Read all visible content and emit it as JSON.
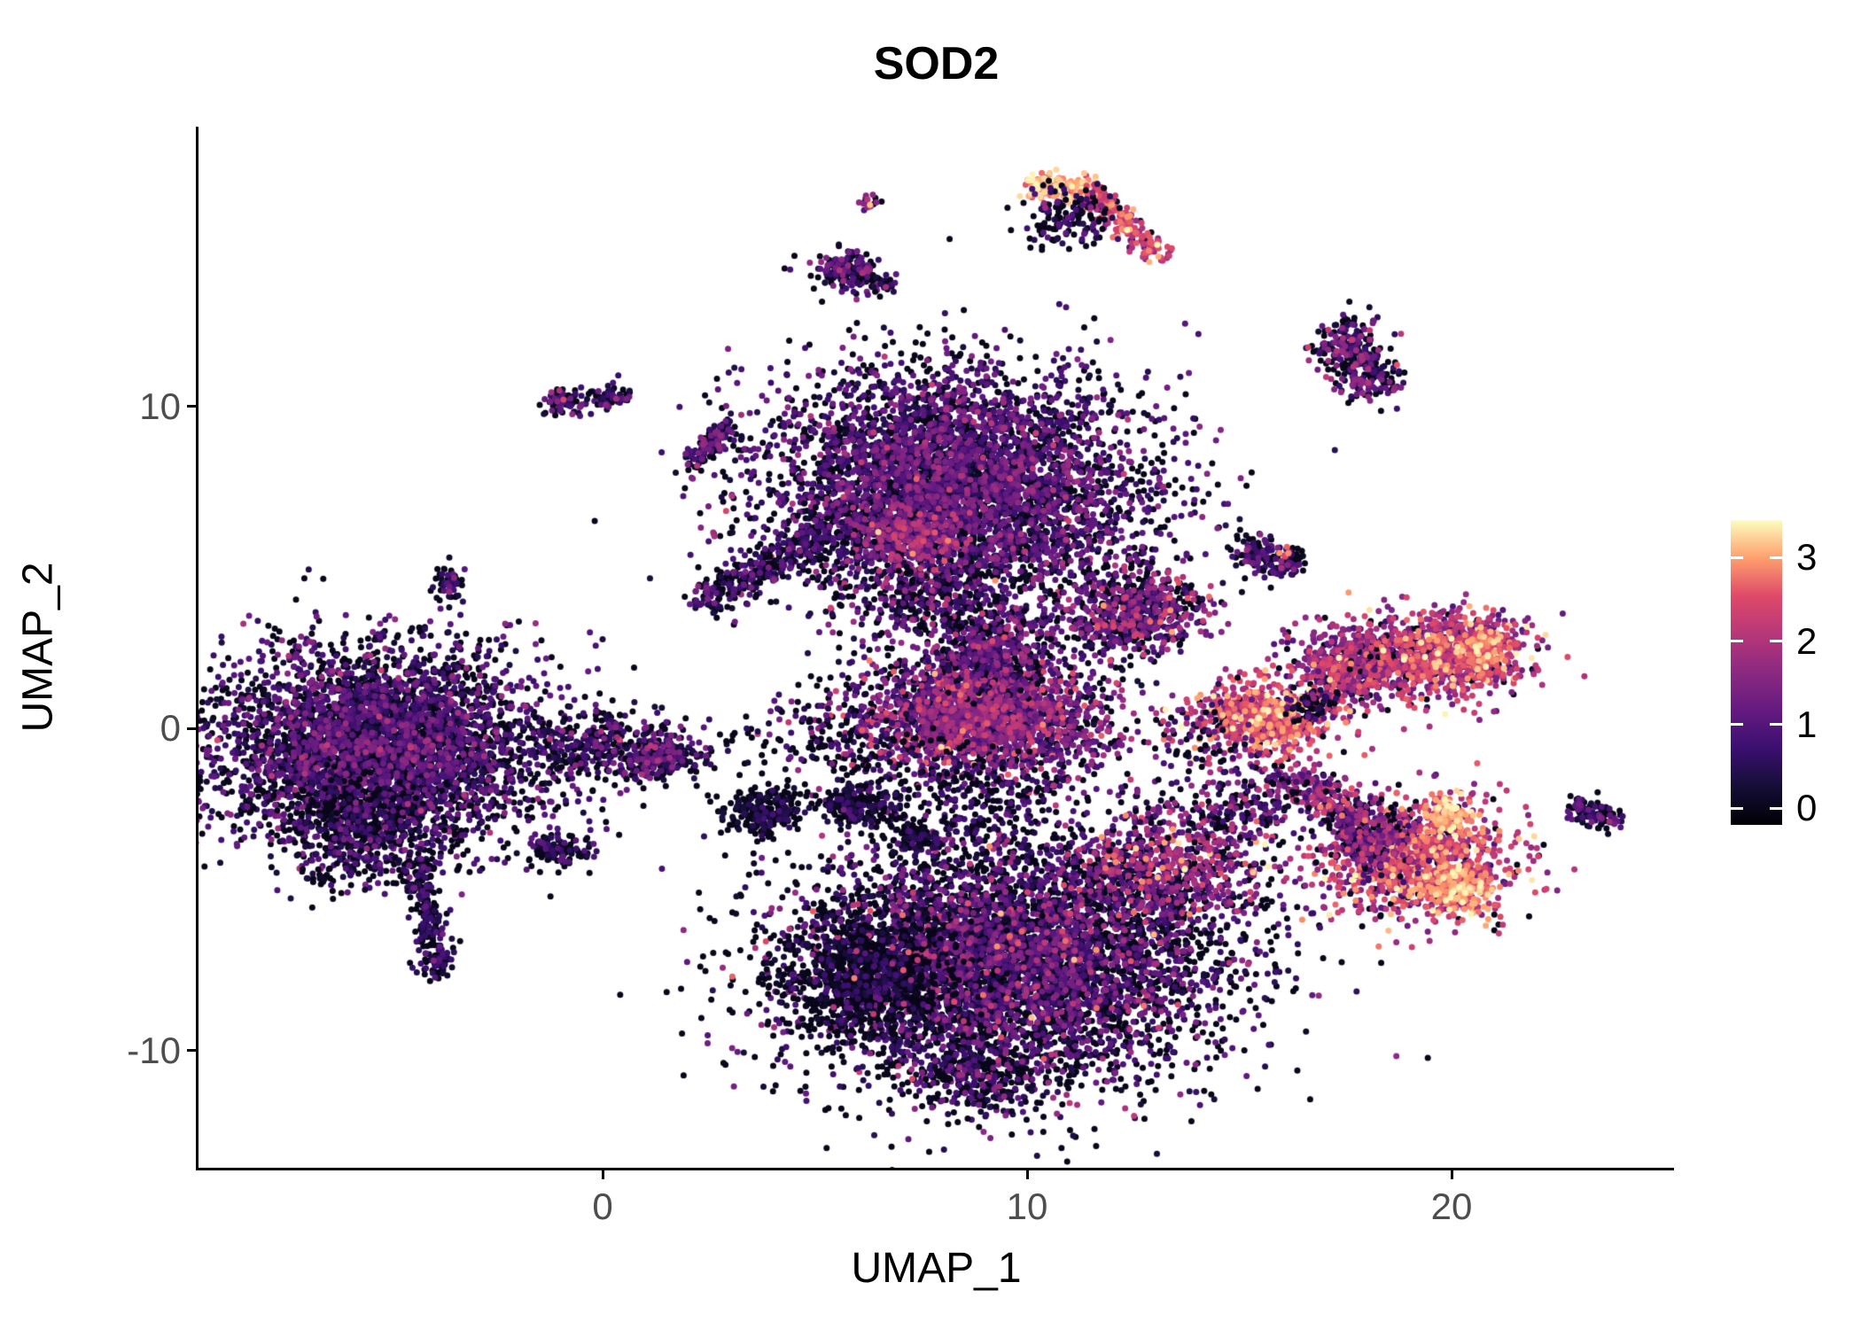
{
  "chart_data": {
    "type": "scatter",
    "subtype": "umap-feature-plot",
    "title": "SOD2",
    "xlabel": "UMAP_1",
    "ylabel": "UMAP_2",
    "xlim": [
      -9.52,
      25.24
    ],
    "ylim": [
      -13.64,
      18.68
    ],
    "xticks": [
      0,
      10,
      20
    ],
    "yticks": [
      -10,
      0,
      10
    ],
    "grid": false,
    "point_radius": 3.5,
    "legend": {
      "position": "right",
      "ticks": [
        0,
        1,
        2,
        3
      ],
      "vmin": -0.2,
      "vmax": 3.45
    },
    "colormap": {
      "name": "magma",
      "stops": [
        [
          0.0,
          "#000004"
        ],
        [
          0.125,
          "#140e36"
        ],
        [
          0.25,
          "#3b0f70"
        ],
        [
          0.375,
          "#641a80"
        ],
        [
          0.5,
          "#8c2981"
        ],
        [
          0.625,
          "#b73779"
        ],
        [
          0.75,
          "#de4968"
        ],
        [
          0.875,
          "#fe9f6d"
        ],
        [
          1.0,
          "#fcfdbf"
        ]
      ]
    },
    "clusters": [
      {
        "name": "left-main",
        "shape": "blob",
        "center": [
          -5.3,
          -0.5
        ],
        "spread": [
          2.0,
          1.55
        ],
        "n": 4200,
        "expr": {
          "zero": 0.38,
          "mean": 0.75,
          "sd": 0.5
        }
      },
      {
        "name": "left-main-lower-lobe",
        "shape": "blob",
        "center": [
          -5.6,
          -3.1
        ],
        "spread": [
          0.9,
          0.8
        ],
        "n": 500,
        "expr": {
          "zero": 0.45,
          "mean": 0.6,
          "sd": 0.45
        }
      },
      {
        "name": "left-tail",
        "shape": "streak",
        "from": [
          -4.4,
          -4.0
        ],
        "to": [
          -3.85,
          -7.7
        ],
        "width": 0.22,
        "n": 240,
        "expr": {
          "zero": 0.45,
          "mean": 0.55,
          "sd": 0.4
        }
      },
      {
        "name": "left-speck",
        "shape": "blob",
        "center": [
          -6.6,
          -4.6
        ],
        "spread": [
          0.18,
          0.12
        ],
        "n": 18,
        "expr": {
          "zero": 0.5,
          "mean": 0.5,
          "sd": 0.4
        }
      },
      {
        "name": "left-bridge",
        "shape": "blob",
        "center": [
          0.3,
          -0.6
        ],
        "spread": [
          1.1,
          0.55
        ],
        "n": 380,
        "expr": {
          "zero": 0.4,
          "mean": 0.7,
          "sd": 0.5
        }
      },
      {
        "name": "left-bridge-blob",
        "shape": "blob",
        "center": [
          1.35,
          -0.9
        ],
        "spread": [
          0.4,
          0.3
        ],
        "n": 200,
        "expr": {
          "zero": 0.35,
          "mean": 0.8,
          "sd": 0.5
        }
      },
      {
        "name": "small-left-low",
        "shape": "blob",
        "center": [
          -1.0,
          -3.8
        ],
        "spread": [
          0.35,
          0.25
        ],
        "n": 110,
        "expr": {
          "zero": 0.5,
          "mean": 0.5,
          "sd": 0.4
        }
      },
      {
        "name": "tiny-left-upper",
        "shape": "blob",
        "center": [
          -3.6,
          4.5
        ],
        "spread": [
          0.18,
          0.3
        ],
        "n": 50,
        "expr": {
          "zero": 0.45,
          "mean": 0.6,
          "sd": 0.4
        }
      },
      {
        "name": "top-main",
        "shape": "blob",
        "center": [
          8.3,
          7.4
        ],
        "spread": [
          2.2,
          1.85
        ],
        "n": 5200,
        "expr": {
          "zero": 0.32,
          "mean": 0.8,
          "sd": 0.55
        }
      },
      {
        "name": "top-main-hotspot",
        "shape": "blob",
        "center": [
          7.3,
          6.0
        ],
        "spread": [
          0.75,
          0.55
        ],
        "n": 320,
        "expr": {
          "zero": 0.08,
          "mean": 1.6,
          "sd": 0.5
        }
      },
      {
        "name": "top-main-lower-spur",
        "shape": "blob",
        "center": [
          7.8,
          3.9
        ],
        "spread": [
          0.85,
          0.6
        ],
        "n": 260,
        "expr": {
          "zero": 0.3,
          "mean": 0.9,
          "sd": 0.6
        }
      },
      {
        "name": "top-diag-streak",
        "shape": "streak",
        "from": [
          2.3,
          3.9
        ],
        "to": [
          5.6,
          6.3
        ],
        "width": 0.3,
        "n": 360,
        "expr": {
          "zero": 0.4,
          "mean": 0.6,
          "sd": 0.45
        }
      },
      {
        "name": "mid-cluster",
        "shape": "blob",
        "center": [
          8.9,
          0.35
        ],
        "spread": [
          1.5,
          1.0
        ],
        "n": 2300,
        "expr": {
          "zero": 0.22,
          "mean": 1.15,
          "sd": 0.6
        }
      },
      {
        "name": "mid-cluster-upper",
        "shape": "blob",
        "center": [
          9.3,
          2.4
        ],
        "spread": [
          0.8,
          0.7
        ],
        "n": 480,
        "expr": {
          "zero": 0.28,
          "mean": 1.0,
          "sd": 0.6
        }
      },
      {
        "name": "mid-cluster-bright",
        "shape": "blob",
        "center": [
          8.7,
          0.2
        ],
        "spread": [
          1.3,
          0.9
        ],
        "n": 70,
        "expr": {
          "zero": 0,
          "mean": 2.3,
          "sd": 0.35
        }
      },
      {
        "name": "mid-right-spur",
        "shape": "blob",
        "center": [
          12.6,
          3.6
        ],
        "spread": [
          0.85,
          0.7
        ],
        "n": 620,
        "expr": {
          "zero": 0.25,
          "mean": 1.1,
          "sd": 0.65
        }
      },
      {
        "name": "bottom-main",
        "shape": "blob",
        "center": [
          9.6,
          -7.2
        ],
        "spread": [
          2.55,
          1.95
        ],
        "n": 5600,
        "expr": {
          "zero": 0.42,
          "mean": 0.75,
          "sd": 0.6
        }
      },
      {
        "name": "bottom-dark-left",
        "shape": "blob",
        "center": [
          6.3,
          -7.7
        ],
        "spread": [
          1.05,
          0.95
        ],
        "n": 900,
        "expr": {
          "zero": 0.58,
          "mean": 0.35,
          "sd": 0.35
        }
      },
      {
        "name": "bottom-lower-ext",
        "shape": "blob",
        "center": [
          8.8,
          -10.7
        ],
        "spread": [
          0.85,
          0.55
        ],
        "n": 300,
        "expr": {
          "zero": 0.45,
          "mean": 0.7,
          "sd": 0.6
        }
      },
      {
        "name": "bottom-bright-specks",
        "shape": "blob",
        "center": [
          9.6,
          -6.8
        ],
        "spread": [
          2.3,
          1.7
        ],
        "n": 90,
        "expr": {
          "zero": 0,
          "mean": 2.2,
          "sd": 0.45
        }
      },
      {
        "name": "bottom-right-ext",
        "shape": "blob",
        "center": [
          13.3,
          -4.3
        ],
        "spread": [
          1.15,
          0.9
        ],
        "n": 680,
        "expr": {
          "zero": 0.22,
          "mean": 1.45,
          "sd": 0.7
        }
      },
      {
        "name": "bottom-mid-scatter",
        "shape": "blob",
        "center": [
          8.6,
          -2.3
        ],
        "spread": [
          1.4,
          0.8
        ],
        "n": 240,
        "expr": {
          "zero": 0.5,
          "mean": 0.6,
          "sd": 0.5
        }
      },
      {
        "name": "black-blob-1",
        "shape": "blob",
        "center": [
          3.8,
          -2.6
        ],
        "spread": [
          0.5,
          0.35
        ],
        "n": 230,
        "expr": {
          "zero": 0.6,
          "mean": 0.35,
          "sd": 0.3
        }
      },
      {
        "name": "black-blob-2",
        "shape": "blob",
        "center": [
          6.0,
          -2.4
        ],
        "spread": [
          0.45,
          0.3
        ],
        "n": 190,
        "expr": {
          "zero": 0.55,
          "mean": 0.4,
          "sd": 0.35
        }
      },
      {
        "name": "black-blob-3",
        "shape": "blob",
        "center": [
          7.4,
          -3.4
        ],
        "spread": [
          0.3,
          0.2
        ],
        "n": 80,
        "expr": {
          "zero": 0.55,
          "mean": 0.4,
          "sd": 0.35
        }
      },
      {
        "name": "left-mid-scatter",
        "shape": "blob",
        "center": [
          5.3,
          -0.3
        ],
        "spread": [
          1.2,
          0.7
        ],
        "n": 160,
        "expr": {
          "zero": 0.5,
          "mean": 0.55,
          "sd": 0.45
        }
      },
      {
        "name": "right-top-lobe-left",
        "shape": "blob",
        "center": [
          17.6,
          1.9
        ],
        "spread": [
          0.7,
          0.6
        ],
        "n": 600,
        "expr": {
          "zero": 0.15,
          "mean": 1.6,
          "sd": 0.6
        }
      },
      {
        "name": "right-top-lobe-right",
        "shape": "blob",
        "center": [
          19.8,
          2.3
        ],
        "spread": [
          1.0,
          0.65
        ],
        "n": 900,
        "expr": {
          "zero": 0.12,
          "mean": 1.95,
          "sd": 0.6
        }
      },
      {
        "name": "right-top-bright-edge",
        "shape": "blob",
        "center": [
          20.7,
          2.4
        ],
        "spread": [
          0.35,
          0.4
        ],
        "n": 200,
        "expr": {
          "zero": 0.05,
          "mean": 2.6,
          "sd": 0.4
        }
      },
      {
        "name": "right-mid-bright",
        "shape": "blob",
        "center": [
          15.6,
          0.3
        ],
        "spread": [
          0.8,
          0.6
        ],
        "n": 650,
        "expr": {
          "zero": 0.08,
          "mean": 2.25,
          "sd": 0.55
        }
      },
      {
        "name": "right-mid-dark-fringe",
        "shape": "blob",
        "center": [
          16.7,
          0.7
        ],
        "spread": [
          0.3,
          0.3
        ],
        "n": 60,
        "expr": {
          "zero": 0.5,
          "mean": 0.6,
          "sd": 0.5
        }
      },
      {
        "name": "right-bottom-main",
        "shape": "blob",
        "center": [
          19.2,
          -4.1
        ],
        "spread": [
          1.1,
          0.9
        ],
        "n": 1100,
        "expr": {
          "zero": 0.1,
          "mean": 2.1,
          "sd": 0.6
        }
      },
      {
        "name": "right-bottom-bright-low",
        "shape": "blob",
        "center": [
          20.1,
          -4.9
        ],
        "spread": [
          0.4,
          0.35
        ],
        "n": 220,
        "expr": {
          "zero": 0.03,
          "mean": 2.9,
          "sd": 0.3
        }
      },
      {
        "name": "right-bottom-bright-top",
        "shape": "blob",
        "center": [
          19.9,
          -2.7
        ],
        "spread": [
          0.3,
          0.25
        ],
        "n": 120,
        "expr": {
          "zero": 0.03,
          "mean": 2.8,
          "sd": 0.35
        }
      },
      {
        "name": "right-bottom-purple-left",
        "shape": "blob",
        "center": [
          18.0,
          -3.5
        ],
        "spread": [
          0.55,
          0.5
        ],
        "n": 260,
        "expr": {
          "zero": 0.2,
          "mean": 1.35,
          "sd": 0.55
        }
      },
      {
        "name": "right-bottom-tail",
        "shape": "streak",
        "from": [
          16.1,
          -1.5
        ],
        "to": [
          18.2,
          -2.9
        ],
        "width": 0.35,
        "n": 260,
        "expr": {
          "zero": 0.2,
          "mean": 1.5,
          "sd": 0.6
        }
      },
      {
        "name": "right-bottom-scatter",
        "shape": "blob",
        "center": [
          15.0,
          -2.3
        ],
        "spread": [
          0.9,
          0.7
        ],
        "n": 210,
        "expr": {
          "zero": 0.35,
          "mean": 1.0,
          "sd": 0.7
        }
      },
      {
        "name": "mid-right-sparse",
        "shape": "blob",
        "center": [
          14.0,
          -0.2
        ],
        "spread": [
          0.7,
          0.8
        ],
        "n": 70,
        "expr": {
          "zero": 0.4,
          "mean": 1.0,
          "sd": 0.8
        }
      },
      {
        "name": "top-arc-bright",
        "shape": "streak",
        "from": [
          10.1,
          16.8
        ],
        "to": [
          11.5,
          16.75
        ],
        "width": 0.22,
        "n": 150,
        "expr": {
          "zero": 0,
          "mean": 3.0,
          "sd": 0.25
        }
      },
      {
        "name": "top-arc-descent",
        "shape": "streak",
        "from": [
          11.5,
          16.7
        ],
        "to": [
          13.15,
          14.6
        ],
        "width": 0.2,
        "n": 200,
        "expr": {
          "zero": 0.05,
          "mean": 2.2,
          "sd": 0.5
        }
      },
      {
        "name": "top-arc-dark",
        "shape": "blob",
        "center": [
          11.0,
          15.9
        ],
        "spread": [
          0.55,
          0.5
        ],
        "n": 140,
        "expr": {
          "zero": 0.45,
          "mean": 0.6,
          "sd": 0.5
        }
      },
      {
        "name": "small-top-mid",
        "shape": "blob",
        "center": [
          5.75,
          14.2
        ],
        "spread": [
          0.4,
          0.3
        ],
        "n": 170,
        "expr": {
          "zero": 0.35,
          "mean": 0.8,
          "sd": 0.55
        }
      },
      {
        "name": "small-top-mid-2",
        "shape": "blob",
        "center": [
          6.55,
          13.8
        ],
        "spread": [
          0.2,
          0.15
        ],
        "n": 25,
        "expr": {
          "zero": 0.4,
          "mean": 0.7,
          "sd": 0.5
        }
      },
      {
        "name": "tiny-top-dot",
        "shape": "blob",
        "center": [
          6.2,
          16.4
        ],
        "spread": [
          0.13,
          0.12
        ],
        "n": 18,
        "expr": {
          "zero": 0.1,
          "mean": 1.8,
          "sd": 0.6
        }
      },
      {
        "name": "tiny-upper-left-1",
        "shape": "blob",
        "center": [
          -0.95,
          10.15
        ],
        "spread": [
          0.3,
          0.2
        ],
        "n": 70,
        "expr": {
          "zero": 0.35,
          "mean": 0.8,
          "sd": 0.6
        }
      },
      {
        "name": "tiny-upper-left-2",
        "shape": "blob",
        "center": [
          0.15,
          10.3
        ],
        "spread": [
          0.25,
          0.18
        ],
        "n": 55,
        "expr": {
          "zero": 0.4,
          "mean": 0.7,
          "sd": 0.5
        }
      },
      {
        "name": "upper-left-streak",
        "shape": "streak",
        "from": [
          2.1,
          8.2
        ],
        "to": [
          3.0,
          9.4
        ],
        "width": 0.18,
        "n": 130,
        "expr": {
          "zero": 0.35,
          "mean": 0.8,
          "sd": 0.5
        }
      },
      {
        "name": "right-upper-small",
        "shape": "streak",
        "from": [
          17.25,
          12.4
        ],
        "to": [
          18.3,
          10.5
        ],
        "width": 0.42,
        "n": 320,
        "expr": {
          "zero": 0.3,
          "mean": 0.9,
          "sd": 0.6
        }
      },
      {
        "name": "small-right-mid-1",
        "shape": "blob",
        "center": [
          15.45,
          5.5
        ],
        "spread": [
          0.32,
          0.3
        ],
        "n": 90,
        "expr": {
          "zero": 0.4,
          "mean": 0.7,
          "sd": 0.5
        }
      },
      {
        "name": "small-right-mid-2",
        "shape": "blob",
        "center": [
          16.1,
          5.1
        ],
        "spread": [
          0.25,
          0.22
        ],
        "n": 70,
        "expr": {
          "zero": 0.4,
          "mean": 0.7,
          "sd": 0.5
        }
      },
      {
        "name": "small-right-mid-orange",
        "shape": "blob",
        "center": [
          16.05,
          5.55
        ],
        "spread": [
          0.1,
          0.08
        ],
        "n": 6,
        "expr": {
          "zero": 0,
          "mean": 2.6,
          "sd": 0.3
        }
      },
      {
        "name": "far-right-small",
        "shape": "streak",
        "from": [
          22.9,
          -2.35
        ],
        "to": [
          23.85,
          -2.95
        ],
        "width": 0.2,
        "n": 110,
        "expr": {
          "zero": 0.35,
          "mean": 0.8,
          "sd": 0.5
        }
      }
    ]
  }
}
